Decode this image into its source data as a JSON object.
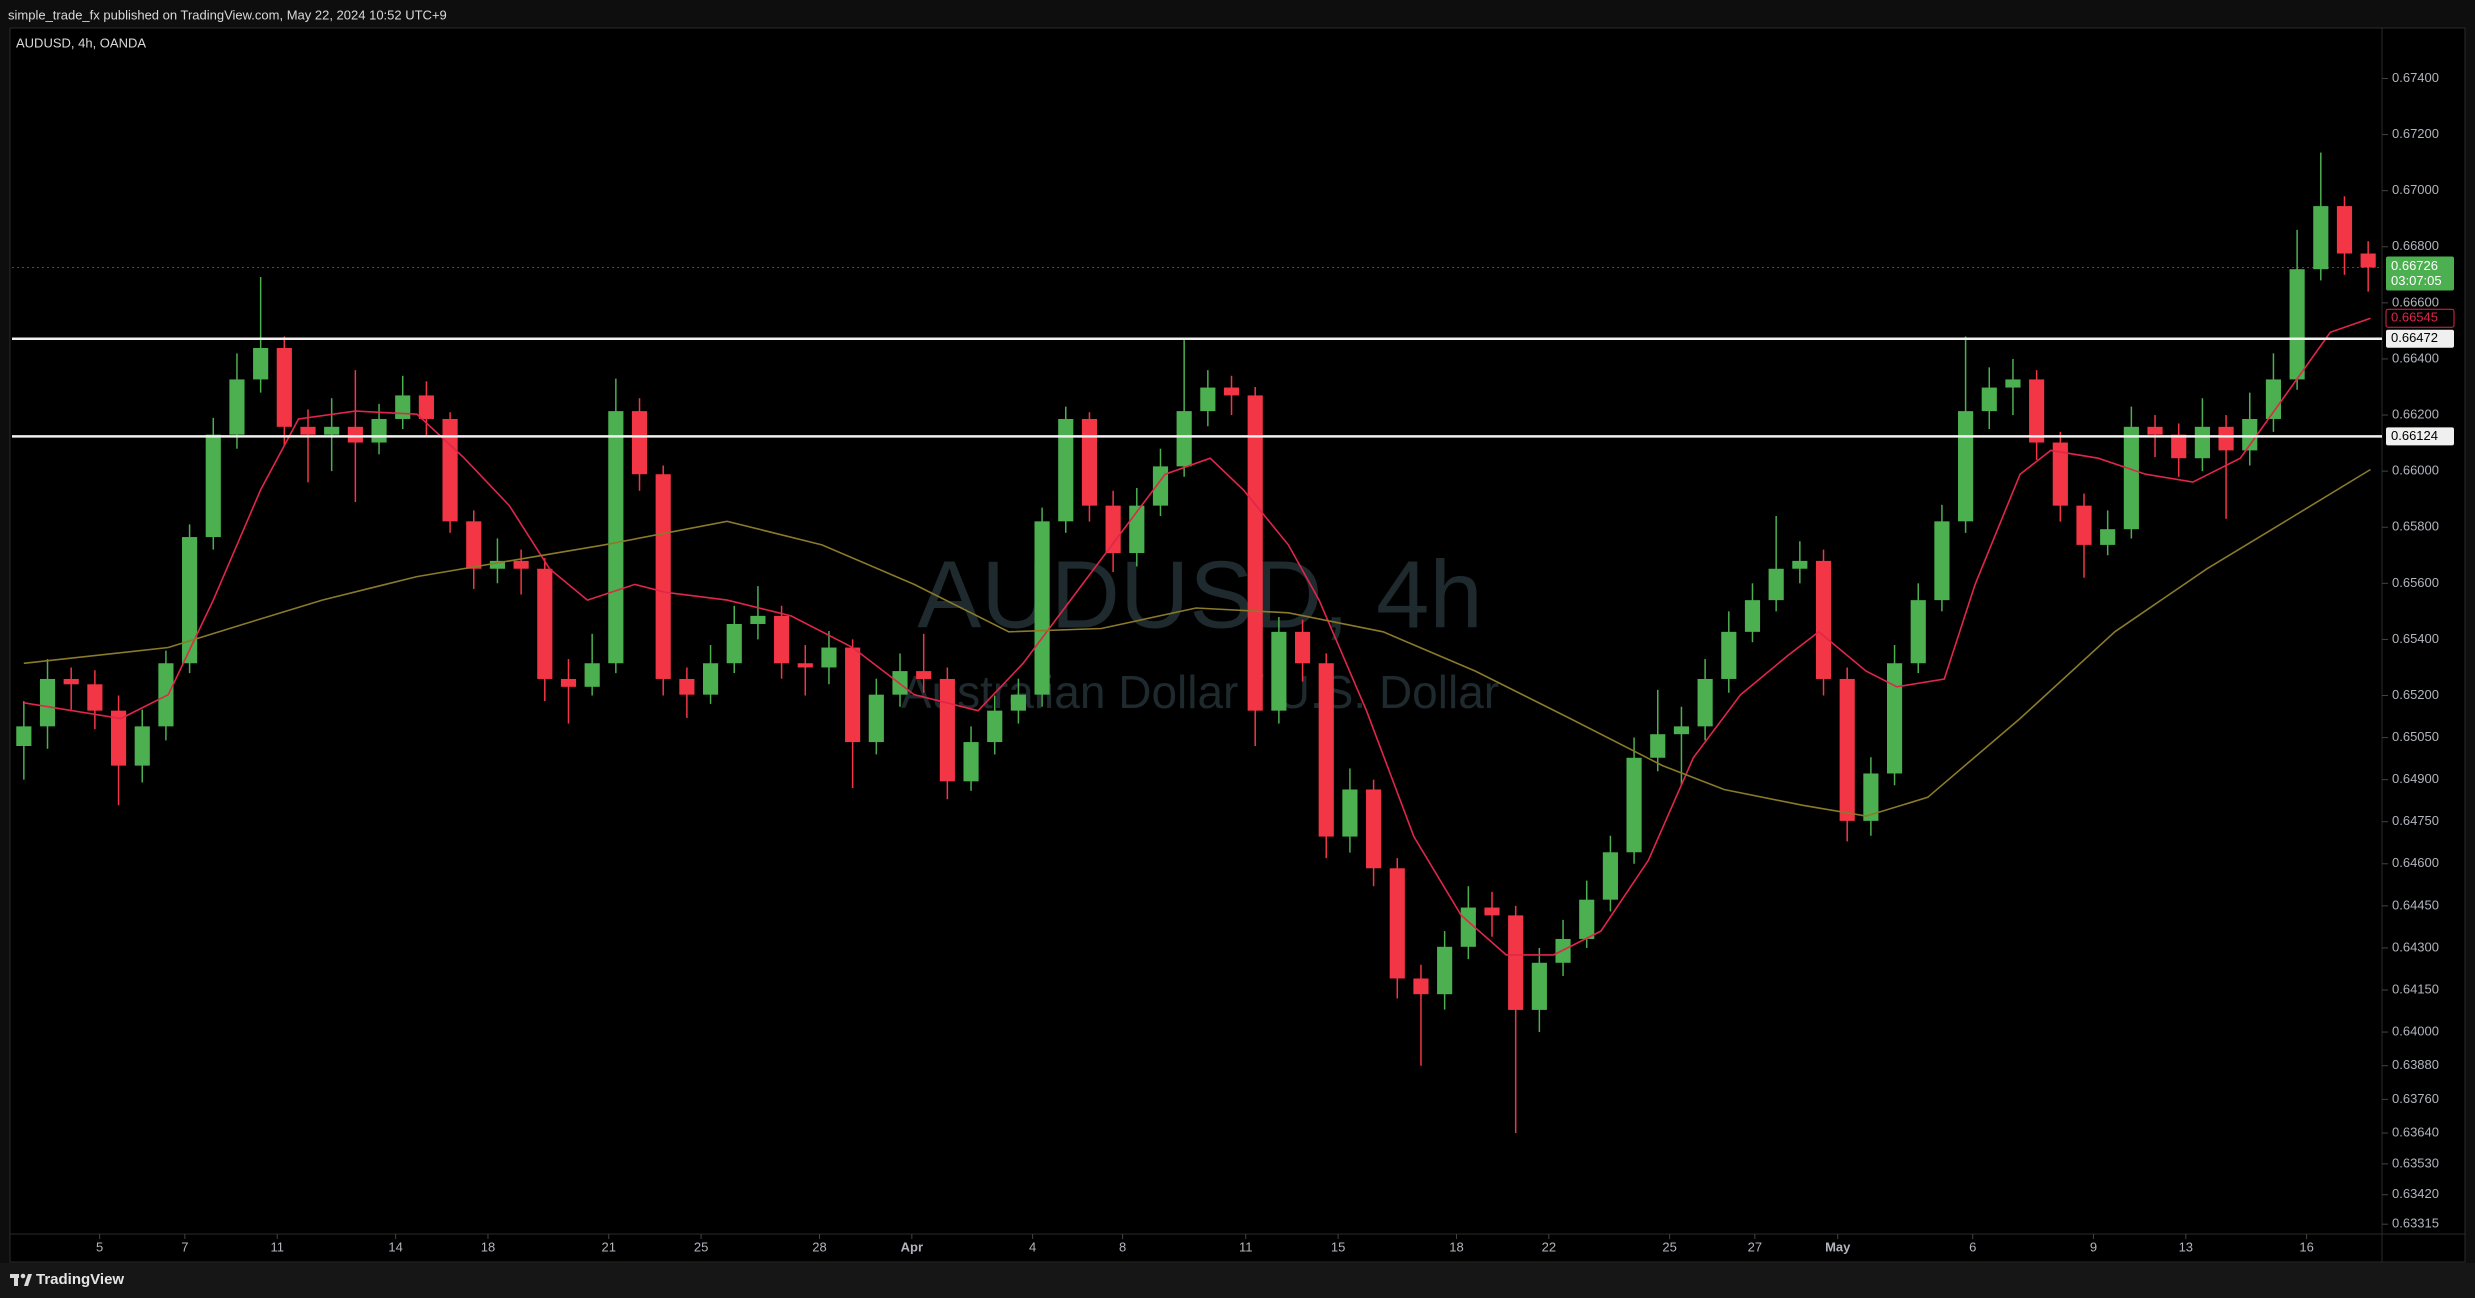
{
  "header": {
    "publisher_line": "simple_trade_fx published on TradingView.com, May 22, 2024 10:52 UTC+9",
    "symbol_line": "AUDUSD, 4h, OANDA"
  },
  "watermark": {
    "symbol": "AUDUSD, 4h",
    "description": "Australian Dollar / U.S. Dollar"
  },
  "footer": {
    "brand": "TradingView"
  },
  "chart_data": {
    "type": "candlestick",
    "up_color": "#4caf50",
    "down_color": "#f23645",
    "open": [
      0.6502,
      0.6509,
      0.65259,
      0.6524,
      0.65146,
      0.6495,
      0.6509,
      0.65315,
      0.65765,
      0.6613,
      0.66327,
      0.66439,
      0.66158,
      0.6613,
      0.66158,
      0.66102,
      0.66186,
      0.6627,
      0.66186,
      0.65821,
      0.65652,
      0.6568,
      0.65652,
      0.65259,
      0.65231,
      0.65315,
      0.66214,
      0.65989,
      0.65259,
      0.65203,
      0.65315,
      0.65455,
      0.65484,
      0.65315,
      0.653,
      0.65371,
      0.65034,
      0.65203,
      0.65287,
      0.65259,
      0.64894,
      0.65034,
      0.65146,
      0.65203,
      0.65821,
      0.66186,
      0.65877,
      0.65708,
      0.65877,
      0.66017,
      0.66214,
      0.66298,
      0.6627,
      0.65146,
      0.65427,
      0.65315,
      0.64697,
      0.64865,
      0.64584,
      0.64191,
      0.64135,
      0.64304,
      0.64444,
      0.64416,
      0.64079,
      0.64247,
      0.64332,
      0.64472,
      0.64641,
      0.64978,
      0.65062,
      0.6509,
      0.65259,
      0.65427,
      0.6554,
      0.65652,
      0.6568,
      0.65259,
      0.64753,
      0.64922,
      0.65315,
      0.6554,
      0.65821,
      0.66214,
      0.66298,
      0.66327,
      0.66102,
      0.65877,
      0.65737,
      0.65793,
      0.66158,
      0.6613,
      0.66046,
      0.66158,
      0.66074,
      0.66186,
      0.66327,
      0.6672,
      0.66945,
      0.66776
    ],
    "high": [
      0.6518,
      0.6533,
      0.653,
      0.6529,
      0.652,
      0.6515,
      0.6536,
      0.6581,
      0.6619,
      0.6642,
      0.66692,
      0.6648,
      0.6622,
      0.6626,
      0.6636,
      0.6624,
      0.6634,
      0.6632,
      0.6621,
      0.6586,
      0.6576,
      0.6572,
      0.6569,
      0.6533,
      0.6542,
      0.6633,
      0.6626,
      0.6602,
      0.653,
      0.6538,
      0.6552,
      0.6559,
      0.6552,
      0.6538,
      0.6543,
      0.654,
      0.6526,
      0.6535,
      0.6542,
      0.653,
      0.6509,
      0.652,
      0.6526,
      0.6587,
      0.6623,
      0.6621,
      0.6593,
      0.6594,
      0.6608,
      0.66467,
      0.6636,
      0.6634,
      0.663,
      0.6548,
      0.6547,
      0.6535,
      0.6494,
      0.649,
      0.6462,
      0.6424,
      0.6436,
      0.6452,
      0.645,
      0.6445,
      0.643,
      0.644,
      0.6454,
      0.647,
      0.6505,
      0.6522,
      0.6516,
      0.6533,
      0.655,
      0.656,
      0.6584,
      0.6575,
      0.6572,
      0.653,
      0.6498,
      0.6538,
      0.656,
      0.6588,
      0.6648,
      0.6637,
      0.664,
      0.6636,
      0.6614,
      0.6592,
      0.6586,
      0.6623,
      0.662,
      0.6617,
      0.6626,
      0.662,
      0.6628,
      0.6642,
      0.6686,
      0.67136,
      0.6698,
      0.6682
    ],
    "low": [
      0.649,
      0.6501,
      0.6515,
      0.6508,
      0.64809,
      0.6489,
      0.6504,
      0.6528,
      0.6572,
      0.6608,
      0.6628,
      0.6609,
      0.6596,
      0.66,
      0.6589,
      0.6606,
      0.6615,
      0.6612,
      0.6578,
      0.6558,
      0.656,
      0.6556,
      0.6518,
      0.651,
      0.652,
      0.6528,
      0.6593,
      0.652,
      0.6512,
      0.6517,
      0.6528,
      0.654,
      0.6526,
      0.652,
      0.6524,
      0.6487,
      0.6499,
      0.6516,
      0.6521,
      0.6483,
      0.6486,
      0.6499,
      0.651,
      0.6516,
      0.6578,
      0.6582,
      0.6564,
      0.6566,
      0.6584,
      0.6598,
      0.6616,
      0.662,
      0.6502,
      0.651,
      0.6525,
      0.6462,
      0.6464,
      0.6452,
      0.6412,
      0.6388,
      0.6408,
      0.6426,
      0.6434,
      0.6364,
      0.64,
      0.642,
      0.643,
      0.6443,
      0.646,
      0.6493,
      0.6488,
      0.6504,
      0.6521,
      0.6539,
      0.655,
      0.656,
      0.652,
      0.6468,
      0.647,
      0.6488,
      0.6528,
      0.655,
      0.6578,
      0.6615,
      0.662,
      0.6604,
      0.6582,
      0.6562,
      0.657,
      0.6576,
      0.6605,
      0.6598,
      0.66,
      0.6583,
      0.6602,
      0.6614,
      0.6629,
      0.6668,
      0.667,
      0.6664
    ],
    "close": [
      0.6509,
      0.65259,
      0.6524,
      0.65146,
      0.6495,
      0.6509,
      0.65315,
      0.65765,
      0.6613,
      0.66327,
      0.66439,
      0.66158,
      0.6613,
      0.66158,
      0.66102,
      0.66186,
      0.6627,
      0.66186,
      0.65821,
      0.65652,
      0.6568,
      0.65652,
      0.65259,
      0.65231,
      0.65315,
      0.66214,
      0.65989,
      0.65259,
      0.65203,
      0.65315,
      0.65455,
      0.65484,
      0.65315,
      0.653,
      0.65371,
      0.65034,
      0.65203,
      0.65287,
      0.65259,
      0.64894,
      0.65034,
      0.65146,
      0.65203,
      0.65821,
      0.66186,
      0.65877,
      0.65708,
      0.65877,
      0.66017,
      0.66214,
      0.66298,
      0.6627,
      0.65146,
      0.65427,
      0.65315,
      0.64697,
      0.64865,
      0.64584,
      0.64191,
      0.64135,
      0.64304,
      0.64444,
      0.64416,
      0.64079,
      0.64247,
      0.64332,
      0.64472,
      0.64641,
      0.64978,
      0.65062,
      0.6509,
      0.65259,
      0.65427,
      0.6554,
      0.65652,
      0.6568,
      0.65259,
      0.64753,
      0.64922,
      0.65315,
      0.6554,
      0.65821,
      0.66214,
      0.66298,
      0.66327,
      0.66102,
      0.65877,
      0.65737,
      0.65793,
      0.66158,
      0.6613,
      0.66046,
      0.66158,
      0.66074,
      0.66186,
      0.66327,
      0.6672,
      0.66945,
      0.66776,
      0.66726
    ],
    "moving_averages": [
      {
        "color": "#e0264a",
        "x": [
          0,
          4.1,
          6.1,
          8,
          10,
          11.6,
          14,
          16.6,
          18.6,
          20.5,
          22.2,
          23.8,
          25.8,
          27.1,
          29.7,
          32.4,
          35,
          37.6,
          40.3,
          42.2,
          44.2,
          46.2,
          48.2,
          50.1,
          51.5,
          53.4,
          54.7,
          56.7,
          58.7,
          60.7,
          62.6,
          64.6,
          66.6,
          68.6,
          70.5,
          72.5,
          74.5,
          75.8,
          77.8,
          79.1,
          81.1,
          82.4,
          84.3,
          85.6,
          87.6,
          89.6,
          91.6,
          93.6,
          95.5,
          97.4,
          99.1
        ],
        "values": [
          0.65174,
          0.65118,
          0.65203,
          0.6554,
          0.65933,
          0.66186,
          0.66214,
          0.66203,
          0.66046,
          0.65877,
          0.65652,
          0.6554,
          0.65596,
          0.65568,
          0.6554,
          0.65484,
          0.65371,
          0.65203,
          0.65146,
          0.65315,
          0.6554,
          0.65765,
          0.65989,
          0.66046,
          0.65933,
          0.65737,
          0.6554,
          0.65146,
          0.64697,
          0.64416,
          0.64275,
          0.64275,
          0.6436,
          0.64612,
          0.64978,
          0.65203,
          0.65343,
          0.65427,
          0.65287,
          0.65231,
          0.65259,
          0.65596,
          0.65989,
          0.66074,
          0.66046,
          0.65989,
          0.65961,
          0.66046,
          0.6627,
          0.66495,
          0.66545
        ]
      },
      {
        "color": "#8a7a2a",
        "x": [
          0,
          6.1,
          9.3,
          12.6,
          16.6,
          20.5,
          24.5,
          29.7,
          33.7,
          37.6,
          41.6,
          45.5,
          49.5,
          53.4,
          57.4,
          61.3,
          65.3,
          69.2,
          71.8,
          75.1,
          77.8,
          80.4,
          84.3,
          88.3,
          92.2,
          95.5,
          99.1
        ],
        "values": [
          0.65315,
          0.65371,
          0.65455,
          0.6554,
          0.65624,
          0.6568,
          0.65737,
          0.65821,
          0.65737,
          0.65596,
          0.65427,
          0.65439,
          0.65512,
          0.65495,
          0.65427,
          0.65287,
          0.65118,
          0.6495,
          0.64865,
          0.64809,
          0.6477,
          0.64837,
          0.65118,
          0.65427,
          0.65652,
          0.65821,
          0.66006
        ]
      }
    ],
    "price_lines": [
      0.66472,
      0.66124
    ],
    "last_price": {
      "value": 0.66726,
      "countdown": "03:07:05"
    },
    "xlim": [
      -0.5,
      99.5
    ],
    "xticks": [
      {
        "value": 3.2,
        "label": "5"
      },
      {
        "value": 6.8,
        "label": "7"
      },
      {
        "value": 10.7,
        "label": "11"
      },
      {
        "value": 15.7,
        "label": "14"
      },
      {
        "value": 19.6,
        "label": "18"
      },
      {
        "value": 24.7,
        "label": "21"
      },
      {
        "value": 28.6,
        "label": "25"
      },
      {
        "value": 33.6,
        "label": "28"
      },
      {
        "value": 37.5,
        "label": "Apr"
      },
      {
        "value": 42.6,
        "label": "4"
      },
      {
        "value": 46.4,
        "label": "8"
      },
      {
        "value": 51.6,
        "label": "11"
      },
      {
        "value": 55.5,
        "label": "15"
      },
      {
        "value": 60.5,
        "label": "18"
      },
      {
        "value": 64.4,
        "label": "22"
      },
      {
        "value": 69.5,
        "label": "25"
      },
      {
        "value": 73.1,
        "label": "27"
      },
      {
        "value": 76.6,
        "label": "May"
      },
      {
        "value": 82.3,
        "label": "6"
      },
      {
        "value": 87.4,
        "label": "9"
      },
      {
        "value": 91.3,
        "label": "13"
      },
      {
        "value": 96.4,
        "label": "16"
      }
    ],
    "ylim": [
      0.6328,
      0.6758
    ],
    "yticks": [
      {
        "value": 0.674,
        "label": "0.67400"
      },
      {
        "value": 0.672,
        "label": "0.67200"
      },
      {
        "value": 0.67,
        "label": "0.67000"
      },
      {
        "value": 0.668,
        "label": "0.66800"
      },
      {
        "value": 0.666,
        "label": "0.66600"
      },
      {
        "value": 0.664,
        "label": "0.66400"
      },
      {
        "value": 0.662,
        "label": "0.66200"
      },
      {
        "value": 0.66,
        "label": "0.66000"
      },
      {
        "value": 0.658,
        "label": "0.65800"
      },
      {
        "value": 0.656,
        "label": "0.65600"
      },
      {
        "value": 0.654,
        "label": "0.65400"
      },
      {
        "value": 0.652,
        "label": "0.65200"
      },
      {
        "value": 0.6505,
        "label": "0.65050"
      },
      {
        "value": 0.649,
        "label": "0.64900"
      },
      {
        "value": 0.6475,
        "label": "0.64750"
      },
      {
        "value": 0.646,
        "label": "0.64600"
      },
      {
        "value": 0.6445,
        "label": "0.64450"
      },
      {
        "value": 0.643,
        "label": "0.64300"
      },
      {
        "value": 0.6415,
        "label": "0.64150"
      },
      {
        "value": 0.64,
        "label": "0.64000"
      },
      {
        "value": 0.6388,
        "label": "0.63880"
      },
      {
        "value": 0.6376,
        "label": "0.63760"
      },
      {
        "value": 0.6364,
        "label": "0.63640"
      },
      {
        "value": 0.6353,
        "label": "0.63530"
      },
      {
        "value": 0.6342,
        "label": "0.63420"
      },
      {
        "value": 0.63315,
        "label": "0.63315"
      }
    ]
  }
}
